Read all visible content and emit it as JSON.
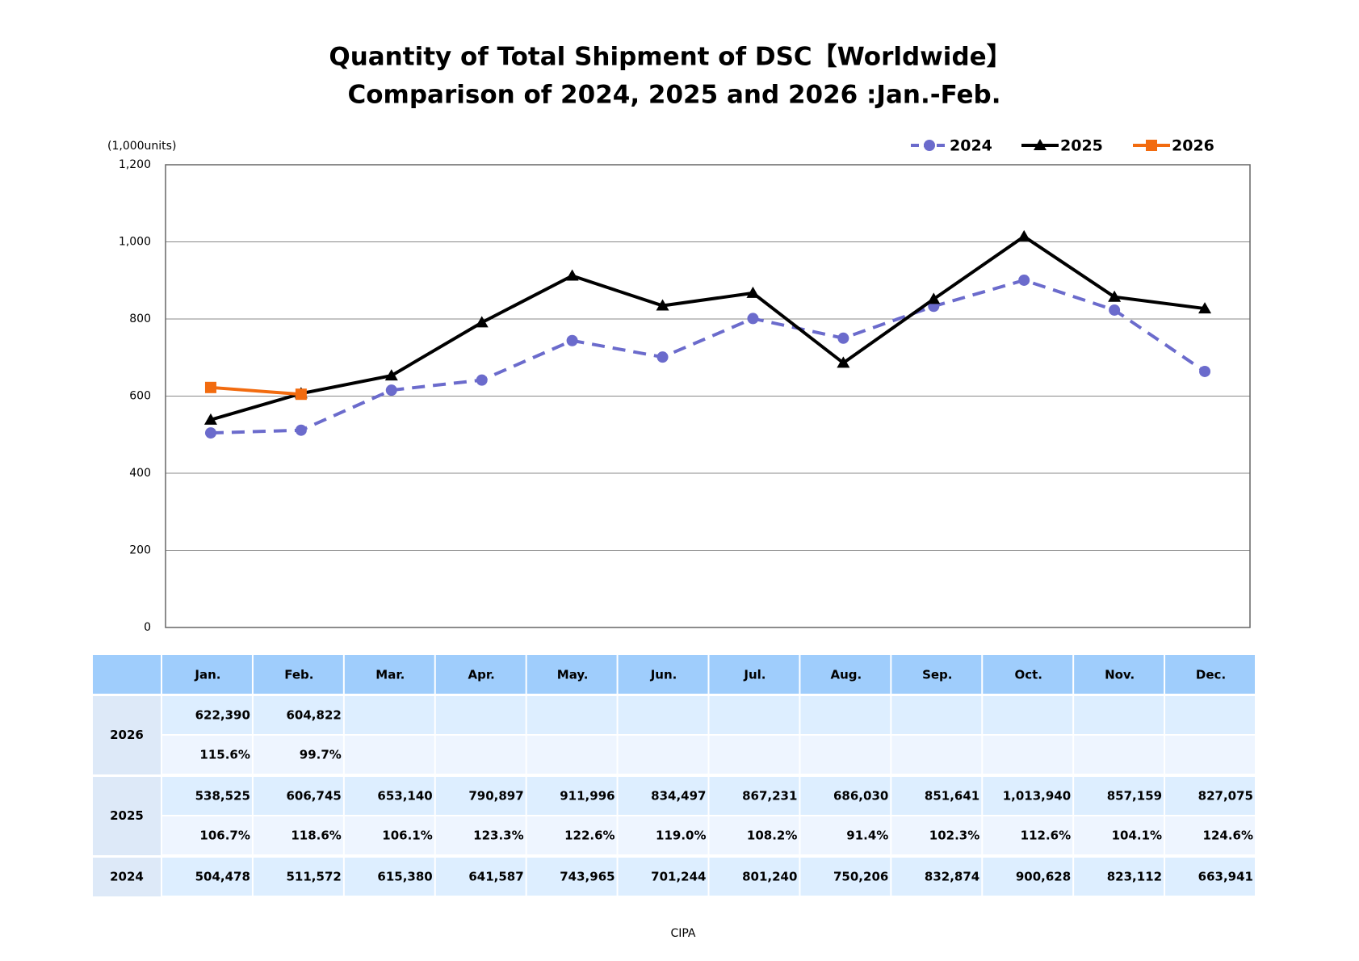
{
  "chart_data": {
    "type": "line",
    "title": "Quantity of Total Shipment of DSC【Worldwide】",
    "subtitle": "Comparison of 2024, 2025 and 2026 :Jan.-Feb.",
    "y_label": "(1,000units)",
    "categories": [
      "Jan.",
      "Feb.",
      "Mar.",
      "Apr.",
      "May.",
      "Jun.",
      "Jul.",
      "Aug.",
      "Sep.",
      "Oct.",
      "Nov.",
      "Dec."
    ],
    "ylim": [
      0,
      1200
    ],
    "yticks": [
      0,
      200,
      400,
      600,
      800,
      {
        "value": 1000,
        "label": "1,000"
      },
      {
        "value": 1200,
        "label": "1,200"
      }
    ],
    "grid": true,
    "legend": "top-right",
    "series": [
      {
        "name": "2024",
        "color": "#6b6bcc",
        "dash": "dashed",
        "marker": "circle",
        "values": [
          504.478,
          511.572,
          615.38,
          641.587,
          743.965,
          701.244,
          801.24,
          750.206,
          832.874,
          900.628,
          823.112,
          663.941
        ]
      },
      {
        "name": "2025",
        "color": "#000000",
        "dash": "solid",
        "marker": "triangle",
        "values": [
          538.525,
          606.745,
          653.14,
          790.897,
          911.996,
          834.497,
          867.231,
          686.03,
          851.641,
          1013.94,
          857.159,
          827.075
        ]
      },
      {
        "name": "2026",
        "color": "#f26b0f",
        "dash": "solid",
        "marker": "square",
        "values": [
          622.39,
          604.822,
          null,
          null,
          null,
          null,
          null,
          null,
          null,
          null,
          null,
          null
        ]
      }
    ]
  },
  "table": {
    "rows": [
      {
        "label": "2026",
        "values": [
          "622,390",
          "604,822"
        ],
        "ratios": [
          "115.6%",
          "99.7%"
        ]
      },
      {
        "label": "2025",
        "values": [
          "538,525",
          "606,745",
          "653,140",
          "790,897",
          "911,996",
          "834,497",
          "867,231",
          "686,030",
          "851,641",
          "1,013,940",
          "857,159",
          "827,075"
        ],
        "ratios": [
          "106.7%",
          "118.6%",
          "106.1%",
          "123.3%",
          "122.6%",
          "119.0%",
          "108.2%",
          "91.4%",
          "102.3%",
          "112.6%",
          "104.1%",
          "124.6%"
        ]
      },
      {
        "label": "2024",
        "values": [
          "504,478",
          "511,572",
          "615,380",
          "641,587",
          "743,965",
          "701,244",
          "801,240",
          "750,206",
          "832,874",
          "900,628",
          "823,112",
          "663,941"
        ]
      }
    ]
  },
  "source": "CIPA"
}
